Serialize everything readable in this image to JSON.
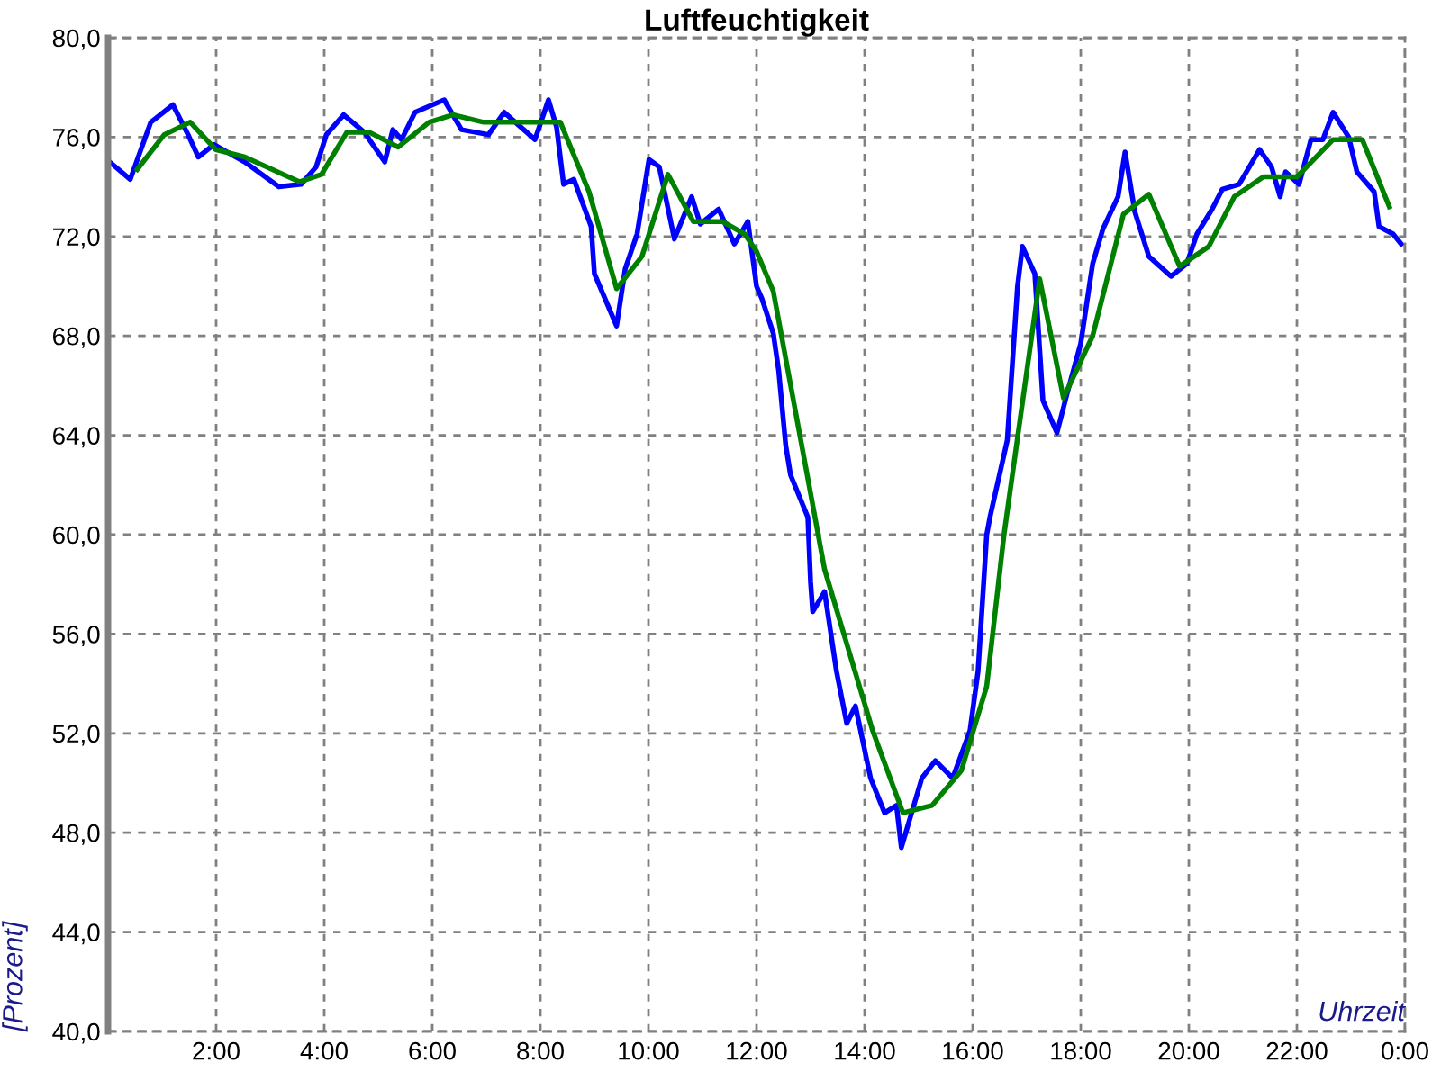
{
  "chart_data": {
    "type": "line",
    "title": "Luftfeuchtigkeit",
    "xlabel": "Uhrzeit",
    "ylabel": "[Prozent]",
    "xlim": [
      0,
      24
    ],
    "ylim": [
      40,
      80
    ],
    "xticks": [
      {
        "value": 0,
        "label": null
      },
      {
        "value": 2,
        "label": "2:00"
      },
      {
        "value": 4,
        "label": "4:00"
      },
      {
        "value": 6,
        "label": "6:00"
      },
      {
        "value": 8,
        "label": "8:00"
      },
      {
        "value": 10,
        "label": "10:00"
      },
      {
        "value": 12,
        "label": "12:00"
      },
      {
        "value": 14,
        "label": "14:00"
      },
      {
        "value": 16,
        "label": "16:00"
      },
      {
        "value": 18,
        "label": "18:00"
      },
      {
        "value": 20,
        "label": "20:00"
      },
      {
        "value": 22,
        "label": "22:00"
      },
      {
        "value": 24,
        "label": "0:00"
      }
    ],
    "yticks": [
      {
        "value": 40,
        "label": "40,0"
      },
      {
        "value": 44,
        "label": "44,0"
      },
      {
        "value": 48,
        "label": "48,0"
      },
      {
        "value": 52,
        "label": "52,0"
      },
      {
        "value": 56,
        "label": "56,0"
      },
      {
        "value": 60,
        "label": "60,0"
      },
      {
        "value": 64,
        "label": "64,0"
      },
      {
        "value": 68,
        "label": "68,0"
      },
      {
        "value": 72,
        "label": "72,0"
      },
      {
        "value": 76,
        "label": "76,0"
      },
      {
        "value": 80,
        "label": "80,0"
      }
    ],
    "grid": true,
    "legend": false,
    "marker": "none",
    "line_style": "solid",
    "series": [
      {
        "color": "#0000ff",
        "x": [
          0.03,
          0.41,
          0.79,
          1.2,
          1.48,
          1.67,
          1.96,
          2.53,
          3.16,
          3.57,
          3.85,
          4.04,
          4.36,
          4.74,
          5.12,
          5.27,
          5.43,
          5.68,
          6.22,
          6.54,
          7.04,
          7.33,
          7.9,
          8.15,
          8.3,
          8.43,
          8.62,
          8.94,
          9.0,
          9.41,
          9.57,
          9.79,
          10.01,
          10.2,
          10.48,
          10.8,
          10.96,
          11.3,
          11.59,
          11.84,
          12.0,
          12.1,
          12.31,
          12.41,
          12.54,
          12.63,
          12.95,
          13.0,
          13.04,
          13.26,
          13.48,
          13.67,
          13.83,
          14.11,
          14.37,
          14.59,
          14.68,
          15.06,
          15.31,
          15.63,
          15.95,
          16.1,
          16.26,
          16.32,
          16.64,
          16.83,
          16.92,
          17.15,
          17.3,
          17.56,
          17.75,
          18.0,
          18.22,
          18.41,
          18.69,
          18.82,
          19.0,
          19.26,
          19.67,
          19.96,
          20.15,
          20.43,
          20.62,
          20.93,
          21.31,
          21.53,
          21.69,
          21.79,
          22.04,
          22.26,
          22.48,
          22.67,
          22.96,
          23.11,
          23.43,
          23.52,
          23.78,
          23.93
        ],
        "values": [
          75.0,
          74.3,
          76.6,
          77.3,
          76.1,
          75.2,
          75.7,
          75.0,
          74.0,
          74.1,
          74.8,
          76.1,
          76.9,
          76.2,
          75.0,
          76.3,
          75.9,
          77.0,
          77.5,
          76.3,
          76.1,
          77.0,
          75.9,
          77.5,
          76.4,
          74.1,
          74.3,
          72.4,
          70.5,
          68.4,
          70.7,
          72.1,
          75.1,
          74.8,
          71.9,
          73.6,
          72.5,
          73.1,
          71.7,
          72.6,
          70.0,
          69.5,
          68.1,
          66.6,
          63.6,
          62.4,
          60.7,
          58.1,
          56.9,
          57.7,
          54.5,
          52.4,
          53.1,
          50.2,
          48.8,
          49.1,
          47.4,
          50.2,
          50.9,
          50.2,
          52.1,
          54.5,
          60.0,
          60.7,
          63.8,
          70.0,
          71.6,
          70.5,
          65.4,
          64.1,
          65.7,
          67.7,
          70.9,
          72.3,
          73.6,
          75.4,
          73.0,
          71.2,
          70.4,
          70.9,
          72.1,
          73.1,
          73.9,
          74.1,
          75.5,
          74.8,
          73.6,
          74.6,
          74.1,
          75.9,
          75.9,
          77.0,
          76.0,
          74.6,
          73.8,
          72.4,
          72.1,
          71.7
        ]
      },
      {
        "color": "#008000",
        "x": [
          0.54,
          1.04,
          1.52,
          1.99,
          2.53,
          3.54,
          3.95,
          4.42,
          4.83,
          5.37,
          5.94,
          6.38,
          6.95,
          8.37,
          8.9,
          9.41,
          9.88,
          10.36,
          10.83,
          11.37,
          11.78,
          12.0,
          12.31,
          13.26,
          14.15,
          14.71,
          15.25,
          15.79,
          16.26,
          16.58,
          17.24,
          17.68,
          18.22,
          18.79,
          19.26,
          19.83,
          20.37,
          20.84,
          21.38,
          22.0,
          22.67,
          23.21,
          23.71
        ],
        "values": [
          74.7,
          76.1,
          76.6,
          75.5,
          75.2,
          74.2,
          74.5,
          76.2,
          76.2,
          75.6,
          76.6,
          76.9,
          76.6,
          76.6,
          73.8,
          69.9,
          71.2,
          74.5,
          72.6,
          72.6,
          72.1,
          71.4,
          69.8,
          58.6,
          52.1,
          48.8,
          49.1,
          50.5,
          53.9,
          60.0,
          70.3,
          65.5,
          68.0,
          72.9,
          73.7,
          70.8,
          71.6,
          73.6,
          74.4,
          74.4,
          75.9,
          75.9,
          73.2
        ]
      }
    ]
  }
}
